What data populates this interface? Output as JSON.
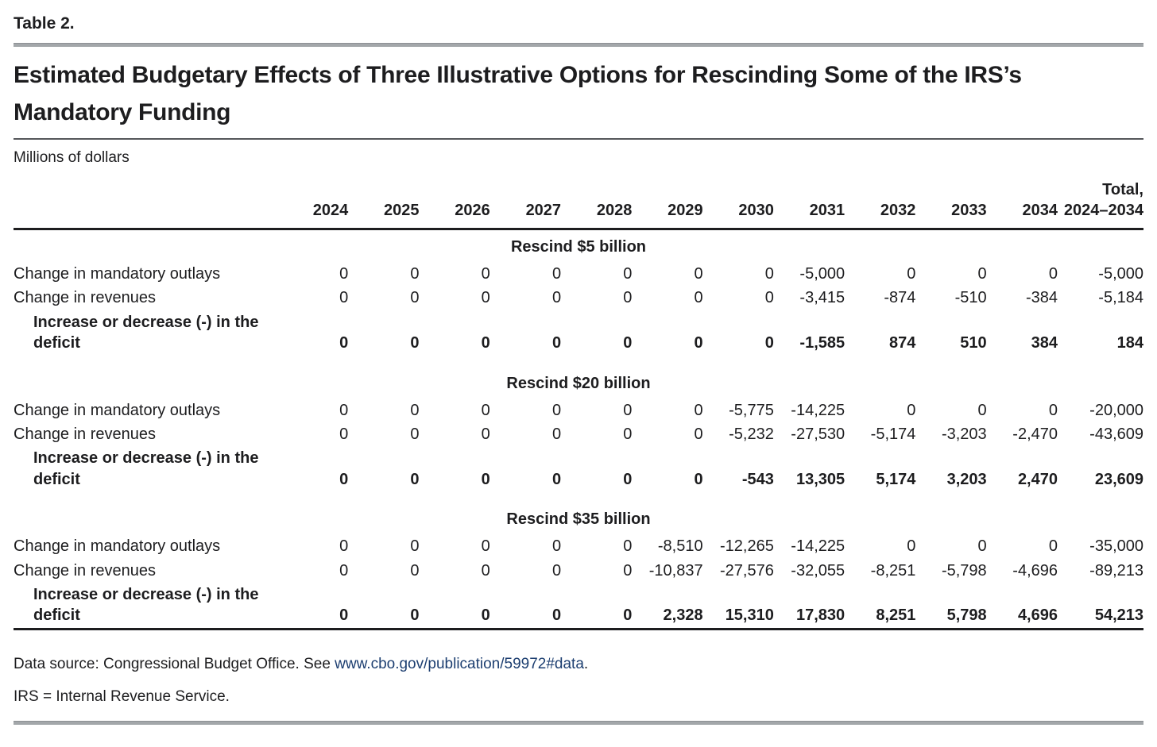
{
  "document": {
    "table_label": "Table 2.",
    "title": "Estimated Budgetary Effects of Three Illustrative Options for Rescinding Some of the IRS’s Mandatory Funding",
    "units": "Millions of dollars"
  },
  "table": {
    "year_columns": [
      "2024",
      "2025",
      "2026",
      "2027",
      "2028",
      "2029",
      "2030",
      "2031",
      "2032",
      "2033",
      "2034"
    ],
    "total_column": "Total, 2024–2034",
    "sections": [
      {
        "header": "Rescind $5 billion",
        "rows": [
          {
            "label": "Change in mandatory outlays",
            "indent": false,
            "bold": false,
            "values": [
              "0",
              "0",
              "0",
              "0",
              "0",
              "0",
              "0",
              "-5,000",
              "0",
              "0",
              "0",
              "-5,000"
            ]
          },
          {
            "label": "Change in revenues",
            "indent": false,
            "bold": false,
            "values": [
              "0",
              "0",
              "0",
              "0",
              "0",
              "0",
              "0",
              "-3,415",
              "-874",
              "-510",
              "-384",
              "-5,184"
            ]
          },
          {
            "label": "Increase or decrease (-) in the deficit",
            "indent": true,
            "bold": true,
            "values": [
              "0",
              "0",
              "0",
              "0",
              "0",
              "0",
              "0",
              "-1,585",
              "874",
              "510",
              "384",
              "184"
            ]
          }
        ]
      },
      {
        "header": "Rescind $20 billion",
        "rows": [
          {
            "label": "Change in mandatory outlays",
            "indent": false,
            "bold": false,
            "values": [
              "0",
              "0",
              "0",
              "0",
              "0",
              "0",
              "-5,775",
              "-14,225",
              "0",
              "0",
              "0",
              "-20,000"
            ]
          },
          {
            "label": "Change in revenues",
            "indent": false,
            "bold": false,
            "values": [
              "0",
              "0",
              "0",
              "0",
              "0",
              "0",
              "-5,232",
              "-27,530",
              "-5,174",
              "-3,203",
              "-2,470",
              "-43,609"
            ]
          },
          {
            "label": "Increase or decrease (-) in the deficit",
            "indent": true,
            "bold": true,
            "values": [
              "0",
              "0",
              "0",
              "0",
              "0",
              "0",
              "-543",
              "13,305",
              "5,174",
              "3,203",
              "2,470",
              "23,609"
            ]
          }
        ]
      },
      {
        "header": "Rescind $35 billion",
        "rows": [
          {
            "label": "Change in mandatory outlays",
            "indent": false,
            "bold": false,
            "values": [
              "0",
              "0",
              "0",
              "0",
              "0",
              "-8,510",
              "-12,265",
              "-14,225",
              "0",
              "0",
              "0",
              "-35,000"
            ]
          },
          {
            "label": "Change in revenues",
            "indent": false,
            "bold": false,
            "values": [
              "0",
              "0",
              "0",
              "0",
              "0",
              "-10,837",
              "-27,576",
              "-32,055",
              "-8,251",
              "-5,798",
              "-4,696",
              "-89,213"
            ]
          },
          {
            "label": "Increase or decrease (-) in the deficit",
            "indent": true,
            "bold": true,
            "values": [
              "0",
              "0",
              "0",
              "0",
              "0",
              "2,328",
              "15,310",
              "17,830",
              "8,251",
              "5,798",
              "4,696",
              "54,213"
            ]
          }
        ]
      }
    ]
  },
  "footer": {
    "data_source_prefix": "Data source: Congressional Budget Office. See ",
    "data_source_link": "www.cbo.gov/publication/59972#data",
    "data_source_suffix": ".",
    "abbreviation_note": "IRS = Internal Revenue Service."
  },
  "colors": {
    "text": "#1d1d1f",
    "link": "#1c3e70",
    "rule_gray": "#a3a7aa",
    "rule_black": "#1d1d1f"
  }
}
